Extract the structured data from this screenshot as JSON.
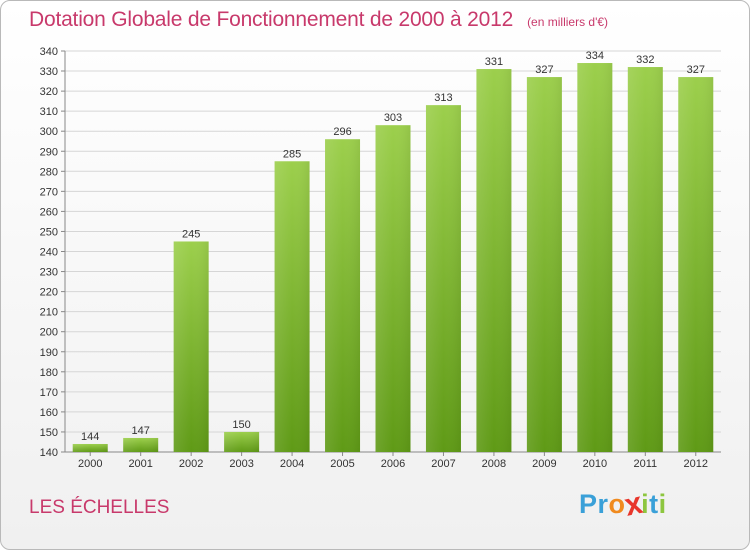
{
  "header": {
    "title": "Dotation Globale de Fonctionnement de 2000 à 2012",
    "subtitle": "(en milliers d'€)"
  },
  "commune": "LES ÉCHELLES",
  "logo": {
    "text": "Proxiti",
    "letters": [
      {
        "ch": "P",
        "color": "#3aa0d8"
      },
      {
        "ch": "r",
        "color": "#3aa0d8"
      },
      {
        "ch": "o",
        "color": "#f08a1e"
      },
      {
        "ch": "x",
        "color": "#e8362b"
      },
      {
        "ch": "i",
        "color": "#8dc63f"
      },
      {
        "ch": "t",
        "color": "#3aa0d8"
      },
      {
        "ch": "i",
        "color": "#8dc63f"
      }
    ]
  },
  "colors": {
    "accent": "#c8396b",
    "bar_top": "#9ccf4c",
    "bar_bottom": "#5f9a16",
    "grid": "#d6d6d6"
  },
  "chart_data": {
    "type": "bar",
    "categories": [
      "2000",
      "2001",
      "2002",
      "2003",
      "2004",
      "2005",
      "2006",
      "2007",
      "2008",
      "2009",
      "2010",
      "2011",
      "2012"
    ],
    "values": [
      144,
      147,
      245,
      150,
      285,
      296,
      303,
      313,
      331,
      327,
      334,
      332,
      327
    ],
    "value_labels": [
      "144",
      "147",
      "245",
      "150",
      "285",
      "296",
      "303",
      "313",
      "331",
      "327",
      "334",
      "332",
      "327"
    ],
    "ylim": [
      140,
      340
    ],
    "yticks": [
      "140",
      "150",
      "160",
      "170",
      "180",
      "190",
      "200",
      "210",
      "220",
      "230",
      "240",
      "250",
      "260",
      "270",
      "280",
      "290",
      "300",
      "310",
      "320",
      "330",
      "340"
    ],
    "grid": true,
    "legend": "none",
    "title": "Dotation Globale de Fonctionnement de 2000 à 2012",
    "xlabel": "",
    "ylabel": ""
  }
}
